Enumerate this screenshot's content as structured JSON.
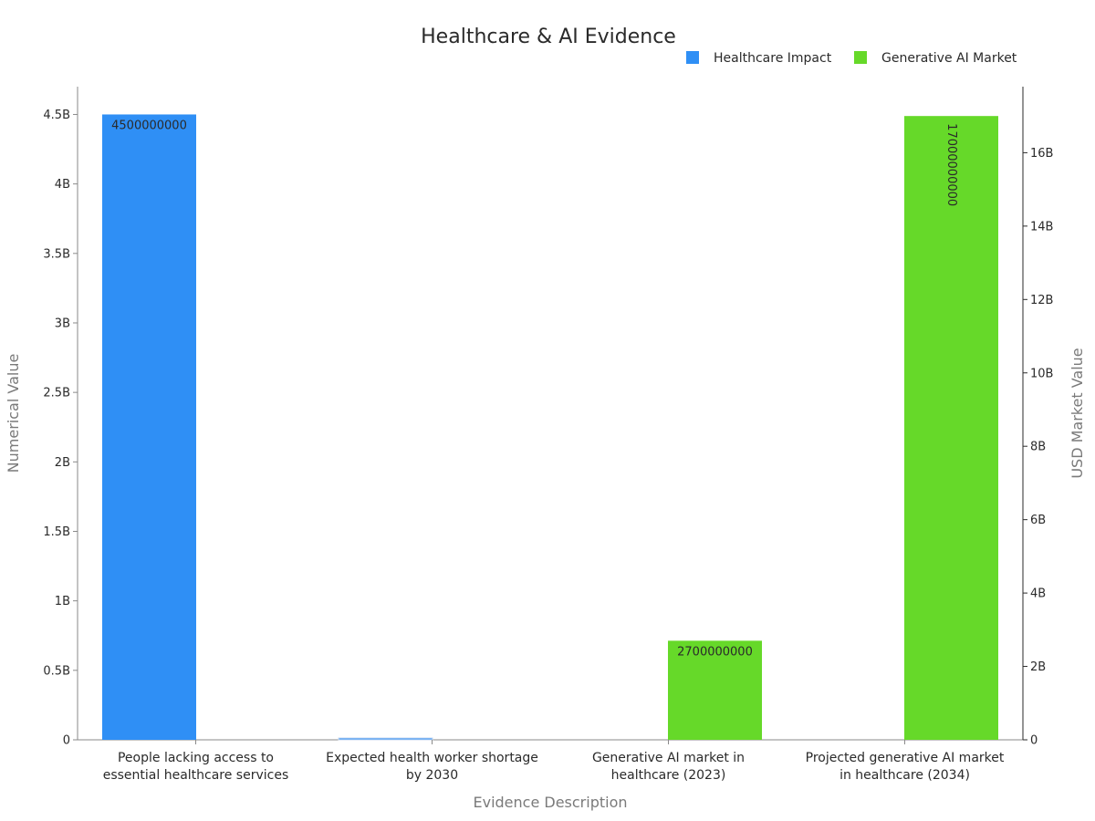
{
  "chart_data": {
    "type": "bar",
    "title": "Healthcare & AI Evidence",
    "xlabel": "Evidence Description",
    "ylabel": "Numerical Value",
    "y2label": "USD Market Value",
    "categories": [
      [
        "People lacking access to",
        "essential healthcare services"
      ],
      [
        "Expected health worker shortage",
        "by 2030"
      ],
      [
        "Generative AI market in",
        "healthcare (2023)"
      ],
      [
        "Projected generative AI market",
        "in healthcare (2034)"
      ]
    ],
    "series": [
      {
        "name": "Healthcare Impact",
        "axis": "left",
        "color": "#2f8ff5",
        "values": [
          4500000000,
          11000000,
          null,
          null
        ],
        "labels": [
          "4500000000",
          "",
          "",
          ""
        ]
      },
      {
        "name": "Generative AI Market",
        "axis": "right",
        "color": "#66d929",
        "values": [
          null,
          null,
          2700000000,
          17000000000
        ],
        "labels": [
          "",
          "",
          "2700000000",
          "17000000000"
        ]
      }
    ],
    "ylim": [
      0,
      4700000000
    ],
    "y2lim": [
      0,
      17800000000
    ],
    "yticks": [
      {
        "value": 0,
        "label": "0"
      },
      {
        "value": 500000000,
        "label": "0.5B"
      },
      {
        "value": 1000000000,
        "label": "1B"
      },
      {
        "value": 1500000000,
        "label": "1.5B"
      },
      {
        "value": 2000000000,
        "label": "2B"
      },
      {
        "value": 2500000000,
        "label": "2.5B"
      },
      {
        "value": 3000000000,
        "label": "3B"
      },
      {
        "value": 3500000000,
        "label": "3.5B"
      },
      {
        "value": 4000000000,
        "label": "4B"
      },
      {
        "value": 4500000000,
        "label": "4.5B"
      }
    ],
    "y2ticks": [
      {
        "value": 0,
        "label": "0"
      },
      {
        "value": 2000000000,
        "label": "2B"
      },
      {
        "value": 4000000000,
        "label": "4B"
      },
      {
        "value": 6000000000,
        "label": "6B"
      },
      {
        "value": 8000000000,
        "label": "8B"
      },
      {
        "value": 10000000000,
        "label": "10B"
      },
      {
        "value": 12000000000,
        "label": "12B"
      },
      {
        "value": 14000000000,
        "label": "14B"
      },
      {
        "value": 16000000000,
        "label": "16B"
      }
    ],
    "legend": "top-right",
    "grid": false
  }
}
